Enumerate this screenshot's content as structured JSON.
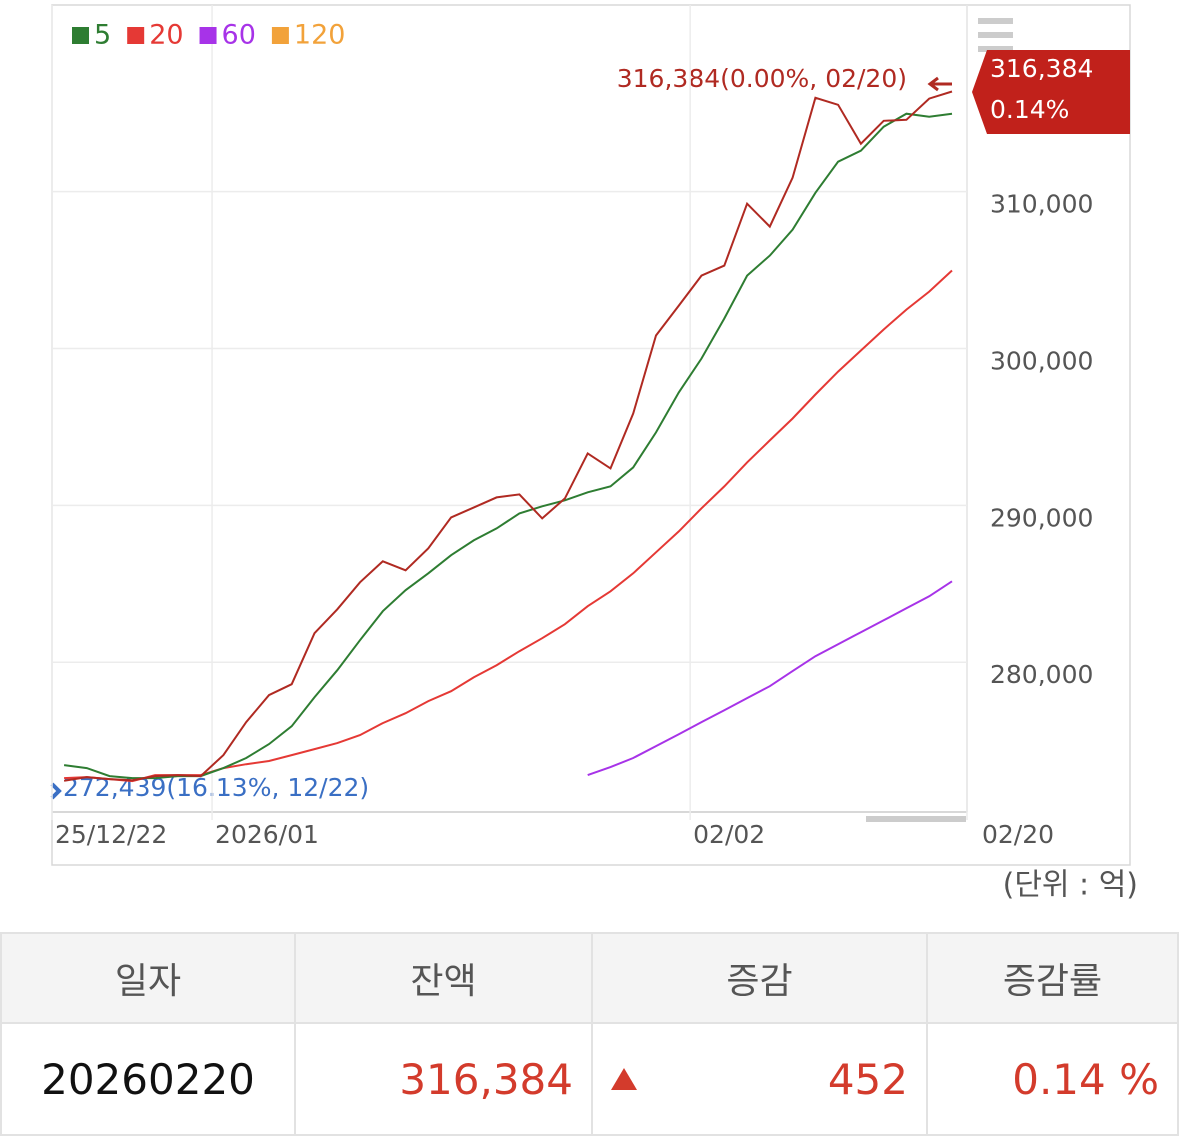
{
  "chart_data": {
    "type": "line",
    "x": [
      0,
      1,
      2,
      3,
      4,
      5,
      6,
      7,
      8,
      9,
      10,
      11,
      12,
      13,
      14,
      15,
      16,
      17,
      18,
      19,
      20,
      21,
      22,
      23,
      24,
      25,
      26,
      27,
      28,
      29,
      30,
      31,
      32,
      33,
      34,
      35,
      36,
      37,
      38,
      39
    ],
    "xlim": [
      -0.53,
      39.66
    ],
    "xticks": [
      {
        "value": -0.53,
        "label": "25/12/22"
      },
      {
        "value": 6.5,
        "label": "2026/01"
      },
      {
        "value": 27.5,
        "label": "02/02"
      },
      {
        "value": 39.66,
        "label": "02/20"
      }
    ],
    "ylim": [
      270450,
      321900
    ],
    "yticks": [
      {
        "value": 280000,
        "label": "280,000"
      },
      {
        "value": 290000,
        "label": "290,000"
      },
      {
        "value": 300000,
        "label": "300,000"
      },
      {
        "value": 310000,
        "label": "310,000"
      }
    ],
    "grid": true,
    "series": [
      {
        "name": "잔액",
        "color": "#b02a22",
        "values": [
          272439,
          272675,
          272548,
          272480,
          272740,
          272800,
          272740,
          274077,
          276180,
          277900,
          278600,
          281847,
          283376,
          285095,
          286433,
          285860,
          287261,
          289235,
          289872,
          290510,
          290700,
          289171,
          290445,
          293311,
          292356,
          295859,
          300827,
          302737,
          304648,
          305285,
          309234,
          307769,
          310890,
          315985,
          315540,
          313056,
          314520,
          314584,
          315932,
          316384
        ]
      },
      {
        "name": "5",
        "color": "#2e7d32",
        "values": [
          273440,
          273250,
          272740,
          272610,
          272610,
          272740,
          272740,
          273250,
          273890,
          274780,
          275920,
          277770,
          279490,
          281400,
          283250,
          284590,
          285670,
          286820,
          287770,
          288530,
          289490,
          289940,
          290320,
          290830,
          291210,
          292420,
          294650,
          297200,
          299360,
          301910,
          304650,
          305920,
          307580,
          309930,
          311910,
          312610,
          314140,
          314970,
          314780,
          314970
        ]
      },
      {
        "name": "20",
        "color": "#e53935",
        "values": [
          272610,
          272675,
          272548,
          272420,
          272800,
          272800,
          272800,
          273250,
          273500,
          273700,
          274080,
          274460,
          274840,
          275350,
          276120,
          276750,
          277520,
          278150,
          279040,
          279810,
          280700,
          281530,
          282420,
          283570,
          284520,
          285670,
          287010,
          288340,
          289810,
          291210,
          292740,
          294140,
          295540,
          297070,
          298530,
          299870,
          301210,
          302480,
          303630,
          304970
        ]
      },
      {
        "name": "60",
        "color": "#a733e8",
        "values": [
          null,
          null,
          null,
          null,
          null,
          null,
          null,
          null,
          null,
          null,
          null,
          null,
          null,
          null,
          null,
          null,
          null,
          null,
          null,
          null,
          null,
          null,
          null,
          272800,
          273310,
          273890,
          274650,
          275410,
          276180,
          276940,
          277710,
          278470,
          279430,
          280380,
          281150,
          281910,
          282670,
          283440,
          284200,
          285160
        ]
      },
      {
        "name": "120",
        "color": "#f2a23a",
        "values": [
          null,
          null,
          null,
          null,
          null,
          null,
          null,
          null,
          null,
          null,
          null,
          null,
          null,
          null,
          null,
          null,
          null,
          null,
          null,
          null,
          null,
          null,
          null,
          null,
          null,
          null,
          null,
          null,
          null,
          null,
          null,
          null,
          null,
          null,
          null,
          null,
          null,
          null,
          null,
          null
        ]
      }
    ],
    "annotations": {
      "high": "316,384(0.00%, 02/20)",
      "low": "272,439(16.13%, 12/22)",
      "last_value": "316,384",
      "last_change": "0.14%"
    },
    "unit": "(단위 : 억)"
  },
  "table": {
    "headers": [
      "일자",
      "잔액",
      "증감",
      "증감률"
    ],
    "rows": [
      [
        "20260220",
        "316,384",
        "452",
        "0.14 %"
      ]
    ]
  }
}
